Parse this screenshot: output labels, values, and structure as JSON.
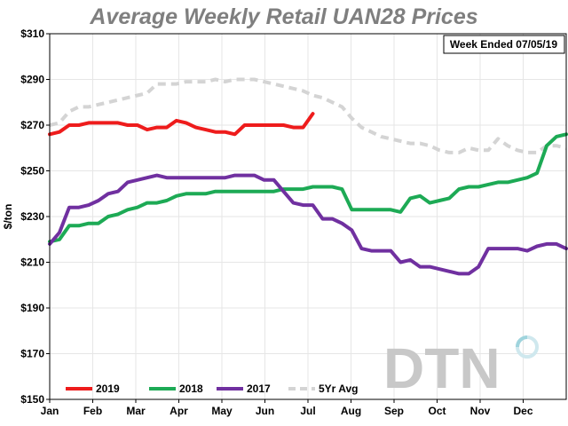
{
  "chart_data": {
    "type": "line",
    "title": "Average Weekly Retail UAN28 Prices",
    "ylabel": "$/ton",
    "xlabel": "",
    "ylim": [
      150,
      310
    ],
    "yticks": [
      150,
      170,
      190,
      210,
      230,
      250,
      270,
      290,
      310
    ],
    "ytick_labels": [
      "$150",
      "$170",
      "$190",
      "$210",
      "$230",
      "$250",
      "$270",
      "$290",
      "$310"
    ],
    "months": [
      "Jan",
      "Feb",
      "Mar",
      "Apr",
      "May",
      "Jun",
      "Jul",
      "Aug",
      "Sep",
      "Oct",
      "Nov",
      "Dec"
    ],
    "grid": true,
    "annotation": "Week Ended 07/05/19",
    "legend_position": "bottom-left",
    "logo": "DTN",
    "series": [
      {
        "name": "2019",
        "color": "#ee1c1c",
        "dash": "solid",
        "values": [
          266,
          267,
          270,
          270,
          271,
          271,
          271,
          271,
          270,
          270,
          268,
          269,
          269,
          272,
          271,
          269,
          268,
          267,
          267,
          266,
          270,
          270,
          270,
          270,
          270,
          269,
          269,
          275
        ]
      },
      {
        "name": "2018",
        "color": "#1daa55",
        "dash": "solid",
        "values": [
          219,
          220,
          226,
          226,
          227,
          227,
          230,
          231,
          233,
          234,
          236,
          236,
          237,
          239,
          240,
          240,
          240,
          241,
          241,
          241,
          241,
          241,
          241,
          241,
          242,
          242,
          242,
          243,
          243,
          243,
          242,
          233,
          233,
          233,
          233,
          233,
          232,
          238,
          239,
          236,
          237,
          238,
          242,
          243,
          243,
          244,
          245,
          245,
          246,
          247,
          249,
          261,
          265,
          266
        ]
      },
      {
        "name": "2017",
        "color": "#7030a0",
        "dash": "solid",
        "values": [
          218,
          223,
          234,
          234,
          235,
          237,
          240,
          241,
          245,
          246,
          247,
          248,
          247,
          247,
          247,
          247,
          247,
          247,
          247,
          248,
          248,
          248,
          246,
          246,
          241,
          236,
          235,
          235,
          229,
          229,
          227,
          224,
          216,
          215,
          215,
          215,
          210,
          211,
          208,
          208,
          207,
          206,
          205,
          205,
          208,
          216,
          216,
          216,
          216,
          215,
          217,
          218,
          218,
          216
        ]
      },
      {
        "name": "5Yr Avg",
        "color": "#d4d4d4",
        "dash": "dashed",
        "values": [
          270,
          271,
          276,
          278,
          278,
          279,
          280,
          281,
          282,
          283,
          284,
          288,
          288,
          288,
          289,
          289,
          289,
          290,
          289,
          290,
          290,
          290,
          289,
          288,
          287,
          286,
          285,
          283,
          282,
          280,
          278,
          273,
          269,
          267,
          265,
          264,
          263,
          262,
          262,
          261,
          259,
          258,
          258,
          260,
          259,
          259,
          264,
          261,
          259,
          258,
          258,
          261,
          261,
          260
        ]
      }
    ]
  }
}
